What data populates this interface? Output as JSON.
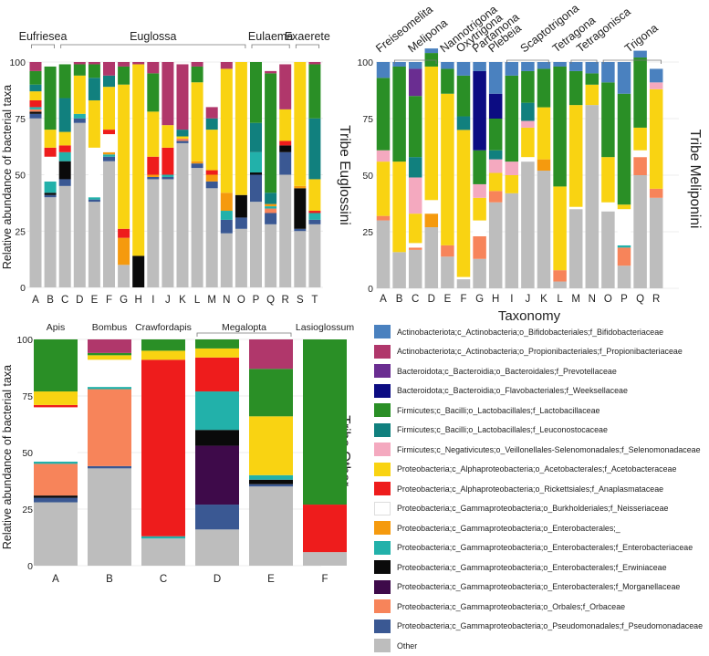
{
  "legend_entries": [
    {
      "key": "act_bif",
      "label": "Actinobacteriota;c_Actinobacteria;o_Bifidobacteriales;f_Bifidobacteriaceae",
      "color": "#4a81bf"
    },
    {
      "key": "act_pro",
      "label": "Actinobacteriota;c_Actinobacteria;o_Propionibacteriales;f_Propionibacteriaceae",
      "color": "#b0376b"
    },
    {
      "key": "bac_pre",
      "label": "Bacteroidota;c_Bacteroidia;o_Bacteroidales;f_Prevotellaceae",
      "color": "#6a2d91"
    },
    {
      "key": "bac_wee",
      "label": "Bacteroidota;c_Bacteroidia;o_Flavobacteriales;f_Weeksellaceae",
      "color": "#0c0c82"
    },
    {
      "key": "fir_lac",
      "label": "Firmicutes;c_Bacilli;o_Lactobacillales;f_Lactobacillaceae",
      "color": "#2a8f26"
    },
    {
      "key": "fir_leu",
      "label": "Firmicutes;c_Bacilli;o_Lactobacillales;f_Leuconostocaceae",
      "color": "#11807e"
    },
    {
      "key": "fir_sel",
      "label": "Firmicutes;c_Negativicutes;o_Veillonellales-Selenomonadales;f_Selenomonadaceae",
      "color": "#f4a9bf"
    },
    {
      "key": "pro_ace",
      "label": "Proteobacteria;c_Alphaproteobacteria;o_Acetobacterales;f_Acetobacteraceae",
      "color": "#f9d312"
    },
    {
      "key": "pro_ana",
      "label": "Proteobacteria;c_Alphaproteobacteria;o_Rickettsiales;f_Anaplasmataceae",
      "color": "#ee1c1c"
    },
    {
      "key": "pro_nei",
      "label": "Proteobacteria;c_Gammaproteobacteria;o_Burkholderiales;f_Neisseriaceae",
      "color": "#ffffff"
    },
    {
      "key": "pro_ent_",
      "label": "Proteobacteria;c_Gammaproteobacteria;o_Enterobacterales;_",
      "color": "#f59a0e"
    },
    {
      "key": "pro_ent",
      "label": "Proteobacteria;c_Gammaproteobacteria;o_Enterobacterales;f_Enterobacteriaceae",
      "color": "#22b1aa"
    },
    {
      "key": "pro_erw",
      "label": "Proteobacteria;c_Gammaproteobacteria;o_Enterobacterales;f_Erwiniaceae",
      "color": "#0a0a0a"
    },
    {
      "key": "pro_mor",
      "label": "Proteobacteria;c_Gammaproteobacteria;o_Enterobacterales;f_Morganellaceae",
      "color": "#3e0a4a"
    },
    {
      "key": "pro_orb",
      "label": "Proteobacteria;c_Gammaproteobacteria;o_Orbales;f_Orbaceae",
      "color": "#f7845a"
    },
    {
      "key": "pro_pse",
      "label": "Proteobacteria;c_Gammaproteobacteria;o_Pseudomonadales;f_Pseudomonadaceae",
      "color": "#3a5893"
    },
    {
      "key": "other",
      "label": "Other",
      "color": "#bdbdbd"
    }
  ],
  "chart_data": [
    {
      "id": "euglossini",
      "type": "bar",
      "stacked": true,
      "title": "Tribe Euglossini",
      "ylabel": "Relative abundance of bacterial taxa",
      "xlabel": "",
      "ylim": [
        0,
        100
      ],
      "yticks": [
        "0",
        "25",
        "50",
        "75",
        "100"
      ],
      "categories": [
        "A",
        "B",
        "C",
        "D",
        "E",
        "F",
        "G",
        "H",
        "I",
        "J",
        "K",
        "L",
        "M",
        "N",
        "O",
        "P",
        "Q",
        "R",
        "S",
        "T"
      ],
      "groups": [
        {
          "label": "Eufriesea",
          "from": 0,
          "to": 1
        },
        {
          "label": "Euglossa",
          "from": 2,
          "to": 14
        },
        {
          "label": "Eulaema",
          "from": 15,
          "to": 17
        },
        {
          "label": "Exaerete",
          "from": 18,
          "to": 19
        }
      ],
      "series": [
        {
          "key": "other",
          "values": [
            75,
            40,
            45,
            73,
            38,
            56,
            10,
            0,
            48,
            48,
            64,
            53,
            44,
            24,
            26,
            38,
            28,
            50,
            25,
            28
          ]
        },
        {
          "key": "pro_pse",
          "values": [
            2,
            1,
            3,
            2,
            1,
            2,
            0,
            0,
            1,
            1,
            1,
            2,
            3,
            6,
            5,
            12,
            5,
            10,
            1,
            2
          ]
        },
        {
          "key": "pro_erw",
          "values": [
            1,
            1,
            8,
            0,
            0,
            0,
            0,
            14,
            0,
            0,
            0,
            0,
            0,
            0,
            10,
            1,
            0,
            3,
            18,
            0
          ]
        },
        {
          "key": "pro_orb",
          "values": [
            1,
            0,
            0,
            0,
            0,
            0,
            0,
            0,
            0,
            0,
            1,
            0,
            0,
            0,
            0,
            0,
            2,
            0,
            0,
            0
          ]
        },
        {
          "key": "pro_ent",
          "values": [
            1,
            5,
            4,
            2,
            1,
            1,
            0,
            0,
            0,
            1,
            0,
            0,
            0,
            4,
            0,
            9,
            1,
            0,
            0,
            3
          ]
        },
        {
          "key": "pro_ent_",
          "values": [
            0,
            0,
            0,
            0,
            0,
            1,
            12,
            0,
            1,
            0,
            0,
            1,
            3,
            8,
            0,
            0,
            1,
            0,
            1,
            0
          ]
        },
        {
          "key": "pro_nei",
          "values": [
            0,
            11,
            0,
            0,
            22,
            8,
            0,
            0,
            0,
            0,
            0,
            0,
            0,
            0,
            0,
            0,
            0,
            0,
            0,
            0
          ]
        },
        {
          "key": "pro_ana",
          "values": [
            3,
            4,
            3,
            0,
            0,
            2,
            4,
            0,
            8,
            12,
            0,
            0,
            2,
            0,
            0,
            0,
            0,
            2,
            0,
            1
          ]
        },
        {
          "key": "pro_ace",
          "values": [
            4,
            8,
            6,
            17,
            21,
            19,
            64,
            85,
            20,
            10,
            1,
            35,
            18,
            55,
            59,
            0,
            0,
            14,
            55,
            14
          ]
        },
        {
          "key": "fir_leu",
          "values": [
            3,
            0,
            15,
            0,
            10,
            5,
            0,
            0,
            0,
            0,
            3,
            0,
            5,
            0,
            0,
            13,
            5,
            0,
            0,
            27
          ]
        },
        {
          "key": "fir_lac",
          "values": [
            6,
            28,
            15,
            5,
            6,
            0,
            8,
            0,
            17,
            0,
            0,
            7,
            0,
            0,
            0,
            27,
            53,
            0,
            0,
            24
          ]
        },
        {
          "key": "act_pro",
          "values": [
            4,
            0,
            0,
            1,
            1,
            6,
            2,
            1,
            5,
            28,
            29,
            2,
            5,
            3,
            0,
            0,
            1,
            20,
            0,
            1
          ]
        }
      ]
    },
    {
      "id": "meliponini",
      "type": "bar",
      "stacked": true,
      "title": "Tribe Meliponini",
      "ylabel": "",
      "xlabel": "Taxonomy",
      "ylim": [
        0,
        100
      ],
      "yticks": [
        "0",
        "25",
        "50",
        "75",
        "100"
      ],
      "categories": [
        "A",
        "B",
        "C",
        "D",
        "E",
        "F",
        "G",
        "H",
        "I",
        "J",
        "K",
        "L",
        "M",
        "N",
        "O",
        "P",
        "Q",
        "R"
      ],
      "groups": [
        {
          "label": "Freiseomelita",
          "from": 0,
          "to": 0
        },
        {
          "label": "Melipona",
          "from": 1,
          "to": 3
        },
        {
          "label": "Nannotrigona",
          "from": 4,
          "to": 4
        },
        {
          "label": "Oxytrigona",
          "from": 5,
          "to": 5
        },
        {
          "label": "Partamona",
          "from": 6,
          "to": 6
        },
        {
          "label": "Plebeia",
          "from": 7,
          "to": 7
        },
        {
          "label": "Scaptotrigona",
          "from": 8,
          "to": 10
        },
        {
          "label": "Tetragona",
          "from": 11,
          "to": 11
        },
        {
          "label": "Tetragonisca",
          "from": 12,
          "to": 13
        },
        {
          "label": "Trigona",
          "from": 14,
          "to": 17
        }
      ],
      "series": [
        {
          "key": "other",
          "values": [
            30,
            16,
            17,
            27,
            14,
            4,
            13,
            38,
            42,
            56,
            52,
            3,
            35,
            81,
            34,
            10,
            50,
            40
          ]
        },
        {
          "key": "pro_orb",
          "values": [
            2,
            0,
            1,
            0,
            5,
            0,
            10,
            5,
            0,
            0,
            0,
            5,
            0,
            0,
            0,
            8,
            8,
            4
          ]
        },
        {
          "key": "pro_ent",
          "values": [
            0,
            0,
            0,
            0,
            0,
            0,
            0,
            0,
            0,
            0,
            0,
            0,
            0,
            0,
            0,
            1,
            0,
            0
          ]
        },
        {
          "key": "pro_ent_",
          "values": [
            0,
            0,
            0,
            6,
            0,
            0,
            0,
            0,
            0,
            0,
            5,
            0,
            0,
            0,
            0,
            0,
            0,
            0
          ]
        },
        {
          "key": "pro_nei",
          "values": [
            0,
            0,
            2,
            6,
            0,
            1,
            7,
            0,
            0,
            2,
            0,
            0,
            1,
            0,
            4,
            16,
            3,
            0
          ]
        },
        {
          "key": "pro_ace",
          "values": [
            24,
            40,
            13,
            59,
            67,
            65,
            10,
            8,
            8,
            13,
            23,
            37,
            45,
            9,
            20,
            2,
            10,
            44
          ]
        },
        {
          "key": "fir_sel",
          "values": [
            5,
            0,
            16,
            0,
            0,
            0,
            6,
            6,
            6,
            3,
            0,
            0,
            0,
            0,
            0,
            0,
            0,
            3
          ]
        },
        {
          "key": "fir_leu",
          "values": [
            0,
            0,
            9,
            0,
            0,
            6,
            0,
            4,
            0,
            8,
            0,
            0,
            0,
            0,
            0,
            0,
            0,
            0
          ]
        },
        {
          "key": "fir_lac",
          "values": [
            32,
            42,
            27,
            6,
            11,
            18,
            15,
            14,
            38,
            14,
            17,
            53,
            15,
            5,
            33,
            49,
            31,
            0
          ]
        },
        {
          "key": "bac_wee",
          "values": [
            0,
            0,
            0,
            0,
            0,
            0,
            35,
            11,
            0,
            0,
            0,
            0,
            0,
            0,
            0,
            0,
            0,
            0
          ]
        },
        {
          "key": "bac_pre",
          "values": [
            0,
            0,
            12,
            0,
            0,
            0,
            0,
            0,
            0,
            0,
            0,
            0,
            0,
            0,
            0,
            0,
            0,
            0
          ]
        },
        {
          "key": "act_bif",
          "values": [
            7,
            2,
            3,
            2,
            3,
            6,
            4,
            14,
            6,
            4,
            3,
            2,
            4,
            5,
            9,
            14,
            3,
            6
          ]
        }
      ]
    },
    {
      "id": "other",
      "type": "bar",
      "stacked": true,
      "title": "Tribe Other",
      "ylabel": "Relative abundance of bacterial taxa",
      "xlabel": "",
      "ylim": [
        0,
        100
      ],
      "yticks": [
        "0",
        "25",
        "50",
        "75",
        "100"
      ],
      "categories": [
        "A",
        "B",
        "C",
        "D",
        "E",
        "F"
      ],
      "groups": [
        {
          "label": "Apis",
          "from": 0,
          "to": 0
        },
        {
          "label": "Bombus",
          "from": 1,
          "to": 1
        },
        {
          "label": "Crawfordapis",
          "from": 2,
          "to": 2
        },
        {
          "label": "Megalopta",
          "from": 3,
          "to": 4
        },
        {
          "label": "Lasioglossum",
          "from": 5,
          "to": 5
        }
      ],
      "series": [
        {
          "key": "other",
          "values": [
            28,
            43,
            12,
            16,
            35,
            6
          ]
        },
        {
          "key": "pro_pse",
          "values": [
            2,
            1,
            0,
            11,
            1,
            0
          ]
        },
        {
          "key": "pro_mor",
          "values": [
            0,
            0,
            0,
            26,
            0,
            0
          ]
        },
        {
          "key": "pro_erw",
          "values": [
            1,
            0,
            0,
            7,
            2,
            0
          ]
        },
        {
          "key": "pro_orb",
          "values": [
            14,
            34,
            0,
            0,
            0,
            0
          ]
        },
        {
          "key": "pro_ent",
          "values": [
            1,
            1,
            1,
            17,
            2,
            0
          ]
        },
        {
          "key": "pro_nei",
          "values": [
            24,
            12,
            0,
            0,
            0,
            0
          ]
        },
        {
          "key": "pro_ana",
          "values": [
            1,
            0,
            78,
            15,
            0,
            21
          ]
        },
        {
          "key": "pro_ace",
          "values": [
            6,
            2,
            4,
            4,
            26,
            0
          ]
        },
        {
          "key": "fir_lac",
          "values": [
            23,
            1,
            5,
            4,
            21,
            73
          ]
        },
        {
          "key": "act_pro",
          "values": [
            0,
            6,
            0,
            0,
            13,
            0
          ]
        }
      ]
    }
  ]
}
